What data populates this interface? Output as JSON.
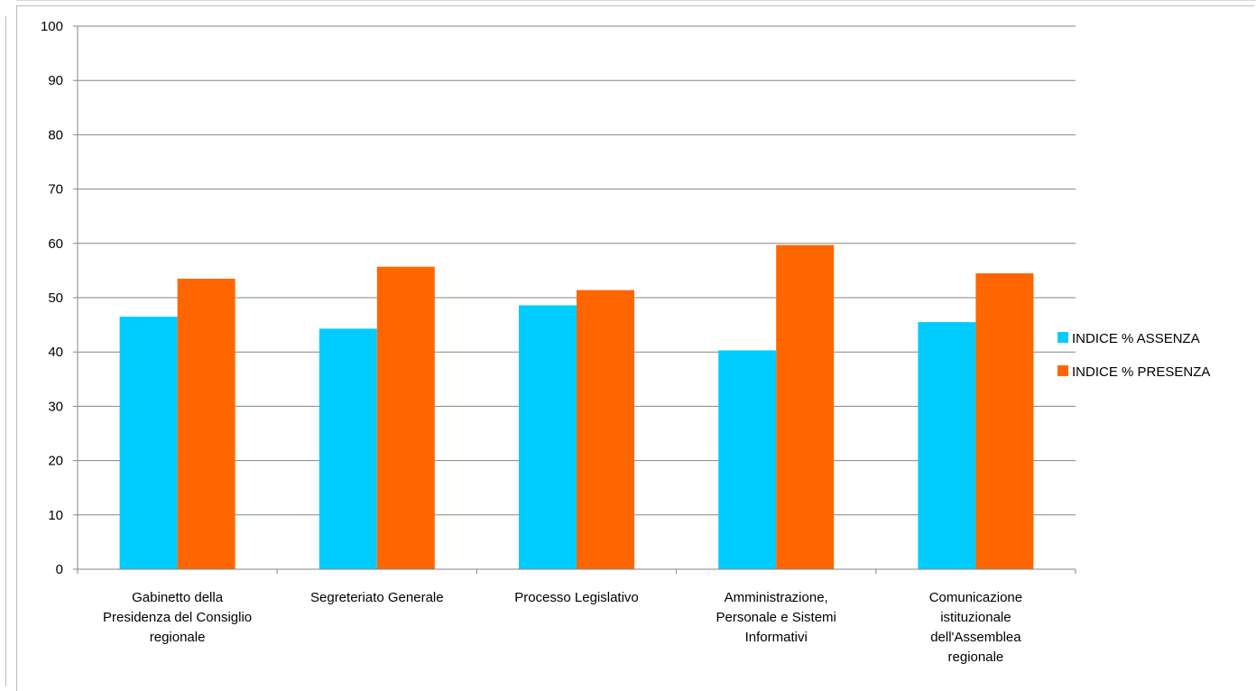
{
  "chart_data": {
    "type": "bar",
    "categories": [
      [
        "Gabinetto della",
        "Presidenza del Consiglio",
        "regionale"
      ],
      [
        "Segreteriato Generale"
      ],
      [
        "Processo Legislativo"
      ],
      [
        "Amministrazione,",
        "Personale e Sistemi",
        "Informativi"
      ],
      [
        "Comunicazione",
        "istituzionale",
        "dell'Assemblea",
        "regionale"
      ]
    ],
    "series": [
      {
        "name": "INDICE % ASSENZA",
        "color": "#00CCFF",
        "values": [
          46.5,
          44.3,
          48.6,
          40.3,
          45.5
        ]
      },
      {
        "name": "INDICE % PRESENZA",
        "color": "#FF6600",
        "values": [
          53.5,
          55.7,
          51.4,
          59.7,
          54.5
        ]
      }
    ],
    "yticks": [
      "0",
      "10",
      "20",
      "30",
      "40",
      "50",
      "60",
      "70",
      "80",
      "90",
      "100"
    ],
    "ylim": [
      0,
      100
    ],
    "grid": true,
    "legend_position": "right"
  }
}
